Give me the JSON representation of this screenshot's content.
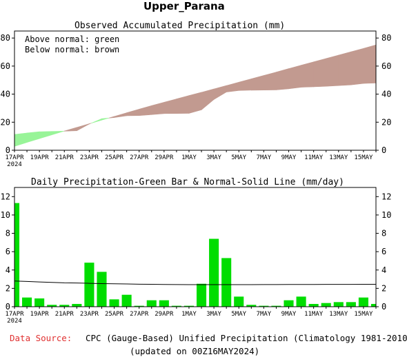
{
  "title": "Upper_Parana",
  "colors": {
    "above": "#98f498",
    "below": "#c29a90",
    "bar": "#00dd00",
    "normal_line": "#000000",
    "source_label": "#e03030"
  },
  "footer": {
    "source_label": "Data Source:",
    "source_text": "CPC (Gauge-Based) Unified Precipitation (Climatology 1981-2010)",
    "updated": "(updated on 00Z16MAY2024)"
  },
  "chart_data": [
    {
      "type": "area",
      "title": "Observed Accumulated Precipitation (mm)",
      "legend": [
        "Above normal: green",
        "Below normal: brown"
      ],
      "legend_placement": "top-left",
      "dates": [
        "17APR",
        "18APR",
        "19APR",
        "20APR",
        "21APR",
        "22APR",
        "23APR",
        "24APR",
        "25APR",
        "26APR",
        "27APR",
        "28APR",
        "29APR",
        "30APR",
        "1MAY",
        "2MAY",
        "3MAY",
        "4MAY",
        "5MAY",
        "6MAY",
        "7MAY",
        "8MAY",
        "9MAY",
        "10MAY",
        "11MAY",
        "12MAY",
        "13MAY",
        "14MAY",
        "15MAY",
        "16MAY"
      ],
      "x_tick_labels": [
        "17APR",
        "19APR",
        "21APR",
        "23APR",
        "25APR",
        "27APR",
        "29APR",
        "1MAY",
        "3MAY",
        "5MAY",
        "7MAY",
        "9MAY",
        "11MAY",
        "13MAY",
        "15MAY"
      ],
      "x_year_label": "2024",
      "series": [
        {
          "name": "Observed",
          "values": [
            11.3,
            12.3,
            13.2,
            13.4,
            13.6,
            13.9,
            18.7,
            22.5,
            23.3,
            24.6,
            24.7,
            25.4,
            26.1,
            26.2,
            26.3,
            28.8,
            36.2,
            41.5,
            42.6,
            42.8,
            42.9,
            43.0,
            43.8,
            44.9,
            45.2,
            45.6,
            46.1,
            46.6,
            47.6,
            47.9
          ]
        },
        {
          "name": "Normal",
          "values": [
            2.8,
            5.6,
            8.3,
            11.0,
            13.7,
            16.3,
            18.9,
            21.5,
            24.1,
            26.7,
            29.3,
            31.8,
            34.2,
            36.6,
            39.0,
            41.3,
            43.7,
            46.1,
            48.5,
            50.9,
            53.3,
            55.7,
            58.2,
            60.6,
            63.0,
            65.4,
            67.8,
            70.2,
            72.6,
            75.1
          ]
        }
      ],
      "ylim": [
        0,
        85
      ],
      "y_ticks": [
        0,
        20,
        40,
        60,
        80
      ],
      "grid": false
    },
    {
      "type": "bar",
      "title": "Daily Precipitation-Green Bar & Normal-Solid Line (mm/day)",
      "dates": [
        "17APR",
        "18APR",
        "19APR",
        "20APR",
        "21APR",
        "22APR",
        "23APR",
        "24APR",
        "25APR",
        "26APR",
        "27APR",
        "28APR",
        "29APR",
        "30APR",
        "1MAY",
        "2MAY",
        "3MAY",
        "4MAY",
        "5MAY",
        "6MAY",
        "7MAY",
        "8MAY",
        "9MAY",
        "10MAY",
        "11MAY",
        "12MAY",
        "13MAY",
        "14MAY",
        "15MAY",
        "16MAY"
      ],
      "x_tick_labels": [
        "17APR",
        "19APR",
        "21APR",
        "23APR",
        "25APR",
        "27APR",
        "29APR",
        "1MAY",
        "3MAY",
        "5MAY",
        "7MAY",
        "9MAY",
        "11MAY",
        "13MAY",
        "15MAY"
      ],
      "x_year_label": "2024",
      "series": [
        {
          "name": "Daily",
          "values": [
            11.3,
            1.0,
            0.9,
            0.2,
            0.2,
            0.3,
            4.8,
            3.8,
            0.8,
            1.3,
            0.1,
            0.7,
            0.7,
            0.1,
            0.1,
            2.5,
            7.4,
            5.3,
            1.1,
            0.2,
            0.1,
            0.1,
            0.7,
            1.1,
            0.3,
            0.4,
            0.5,
            0.5,
            1.0,
            0.3
          ]
        },
        {
          "name": "Normal",
          "values": [
            2.8,
            2.75,
            2.7,
            2.65,
            2.6,
            2.58,
            2.55,
            2.52,
            2.5,
            2.48,
            2.45,
            2.44,
            2.42,
            2.41,
            2.4,
            2.4,
            2.4,
            2.4,
            2.4,
            2.4,
            2.41,
            2.41,
            2.42,
            2.42,
            2.42,
            2.43,
            2.43,
            2.43,
            2.44,
            2.44
          ]
        }
      ],
      "ylim": [
        0,
        13
      ],
      "y_ticks": [
        0,
        2,
        4,
        6,
        8,
        10,
        12
      ],
      "grid": false
    }
  ]
}
